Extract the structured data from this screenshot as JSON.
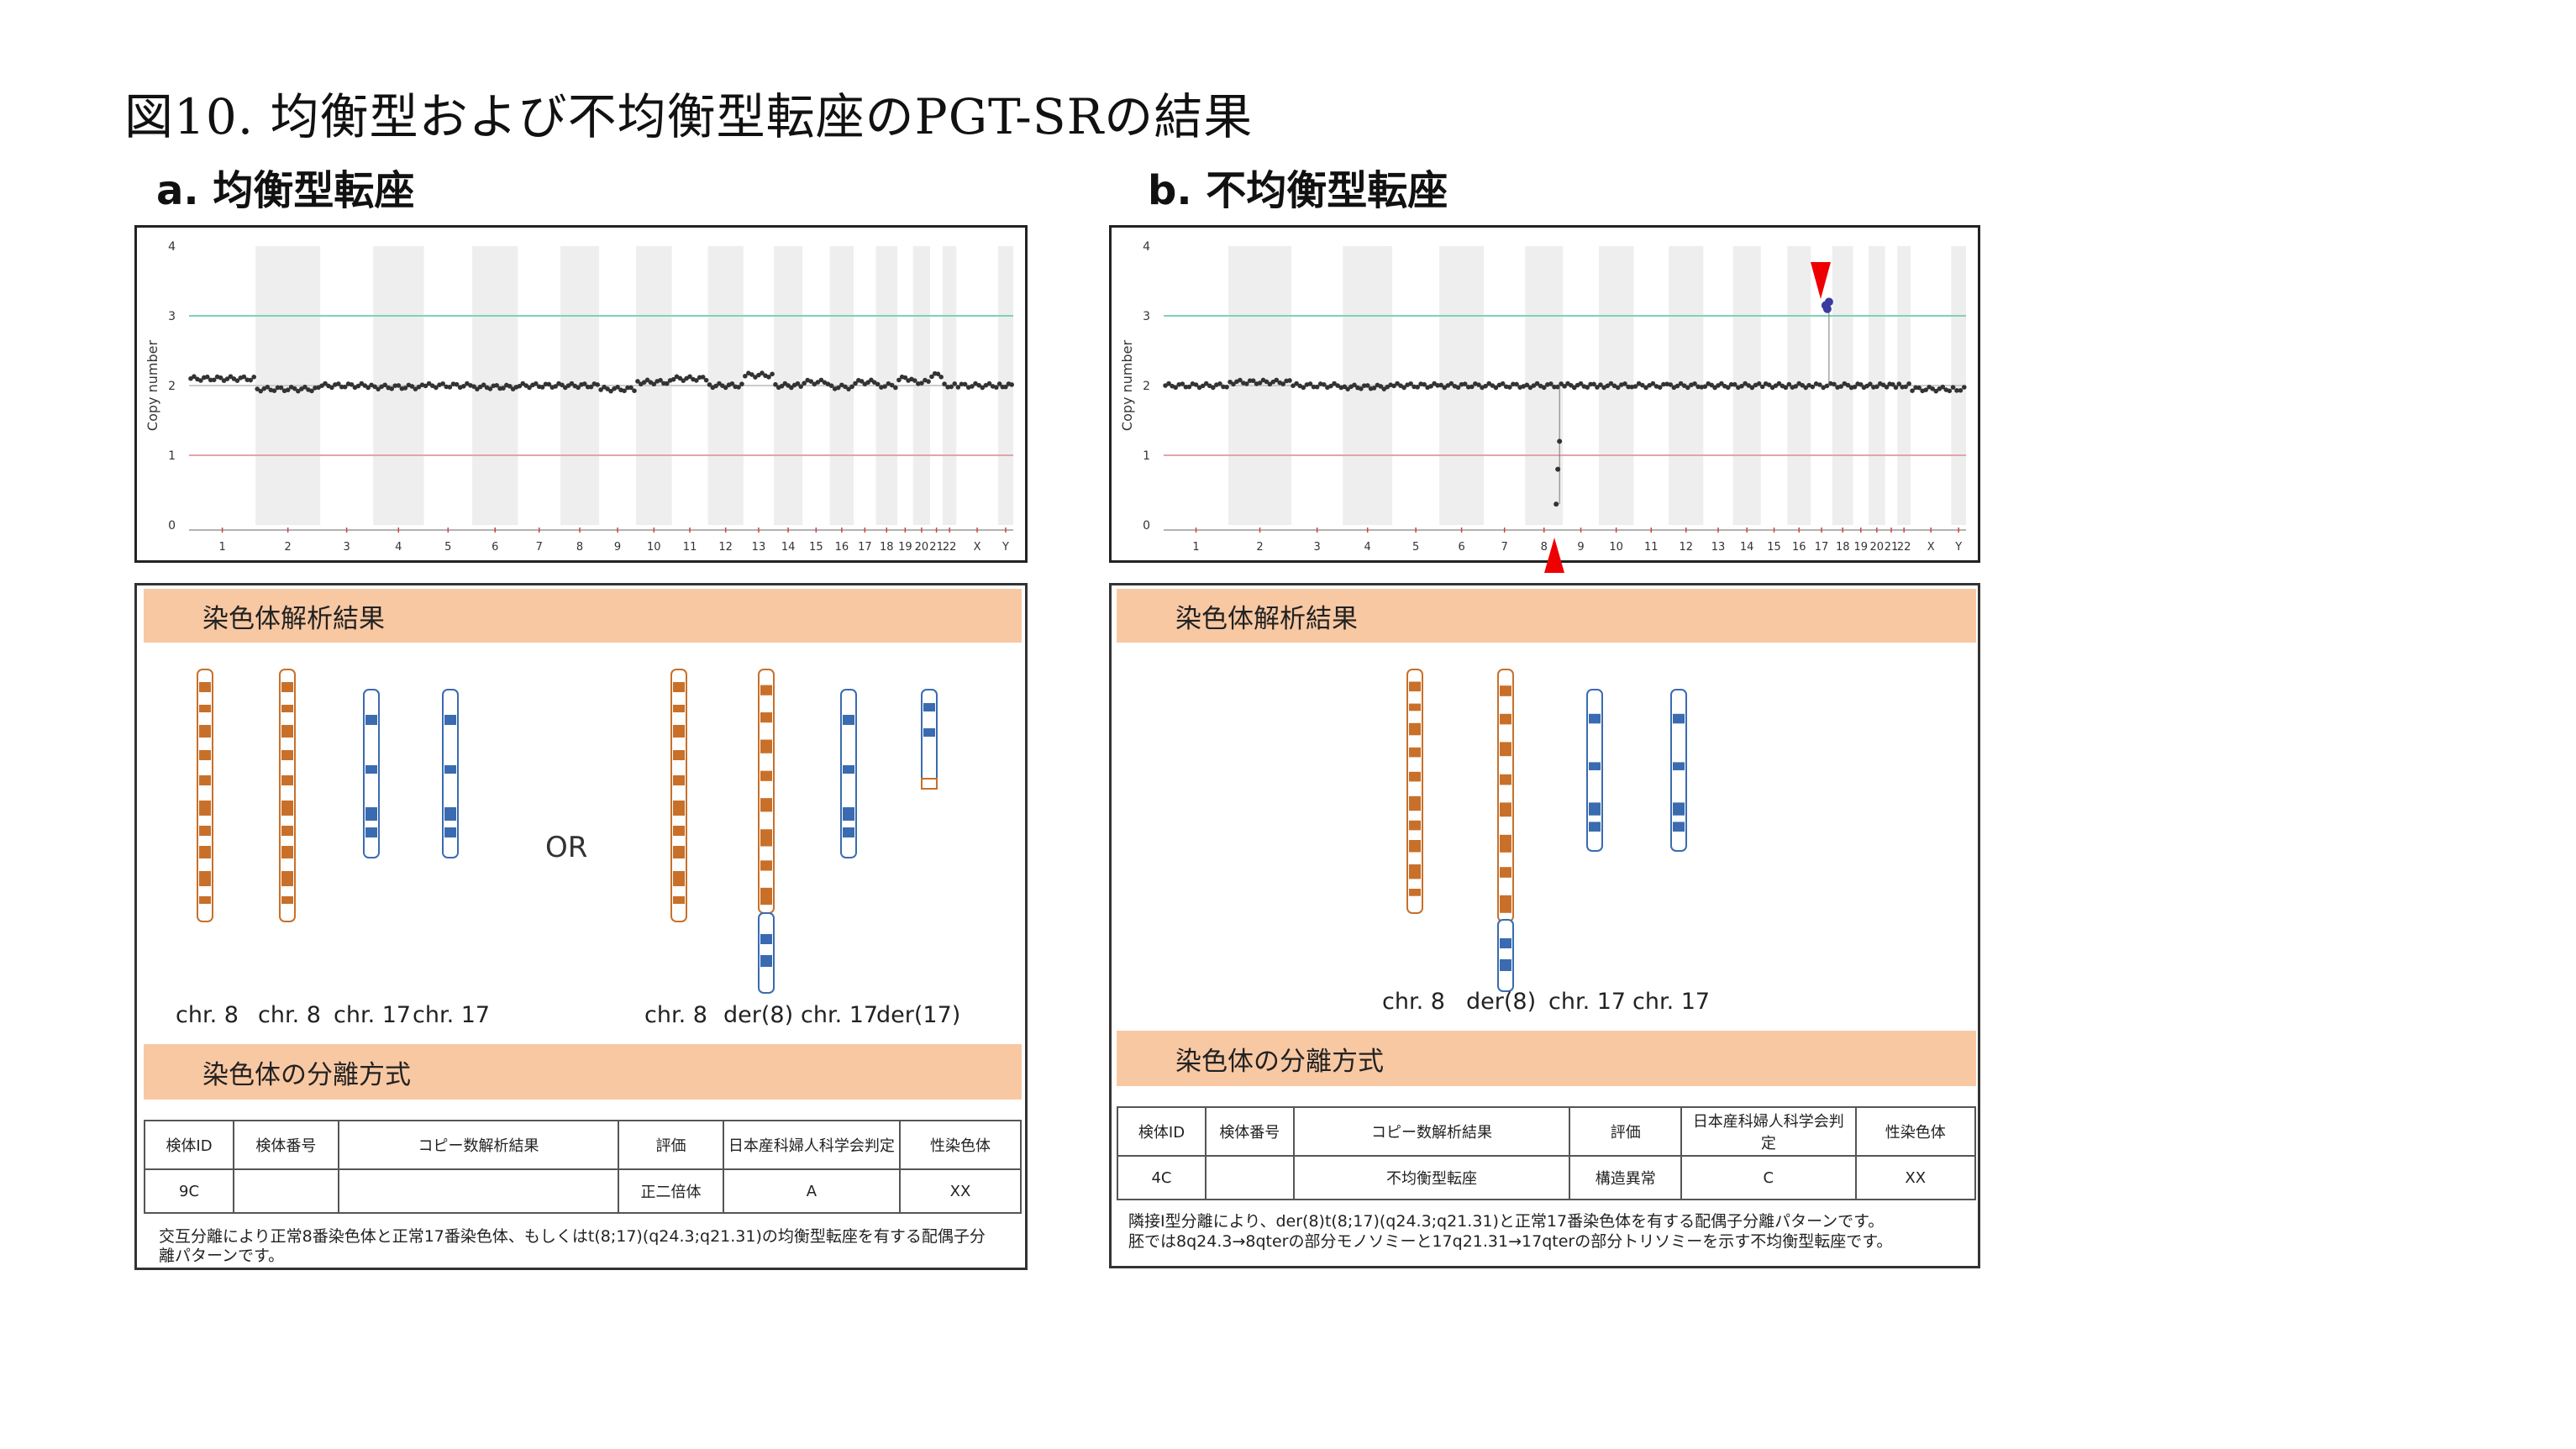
{
  "figure": {
    "title": "図10. 均衡型および不均衡型転座のPGT-SRの結果"
  },
  "panel_a": {
    "label": "a. 均衡型転座",
    "section_karyotype": "染色体解析結果",
    "section_segregation": "染色体の分離方式",
    "or_label": "OR",
    "chromosomes_left": [
      "chr. 8",
      "chr. 8",
      "chr. 17",
      "chr. 17"
    ],
    "chromosomes_right": [
      "chr. 8",
      "der(8)",
      "chr. 17",
      "der(17)"
    ],
    "table": {
      "headers": [
        "検体ID",
        "検体番号",
        "コピー数解析結果",
        "評価",
        "日本産科婦人科学会判定",
        "性染色体"
      ],
      "row": [
        "9C",
        "",
        "",
        "正二倍体",
        "A",
        "XX"
      ],
      "note": "交互分離により正常8番染色体と正常17番染色体、もしくはt(8;17)(q24.3;q21.31)の均衡型転座を有する配偶子分離パターンです。"
    }
  },
  "panel_b": {
    "label": "b. 不均衡型転座",
    "section_karyotype": "染色体解析結果",
    "section_segregation": "染色体の分離方式",
    "chromosomes": [
      "chr. 8",
      "der(8)",
      "chr. 17",
      "chr. 17"
    ],
    "table": {
      "headers": [
        "検体ID",
        "検体番号",
        "コピー数解析結果",
        "評価",
        "日本産科婦人科学会判定",
        "性染色体"
      ],
      "row": [
        "4C",
        "",
        "不均衡型転座",
        "構造異常",
        "C",
        "XX"
      ],
      "note_line1": "隣接Ⅰ型分離により、der(8)t(8;17)(q24.3;q21.31)と正常17番染色体を有する配偶子分離パターンです。",
      "note_line2": "胚では8q24.3→8qterの部分モノソミーと17q21.31→17qterの部分トリソミーを示す不均衡型転座です。"
    }
  },
  "chart_data": [
    {
      "type": "scatter",
      "panel": "a",
      "ylabel": "Copy number",
      "ylim": [
        0,
        4
      ],
      "yticks": [
        0,
        1,
        2,
        3,
        4
      ],
      "reference_lines": [
        {
          "y": 3,
          "color": "#7fd1b9"
        },
        {
          "y": 2,
          "color": "#cccccc"
        },
        {
          "y": 1,
          "color": "#e3a3b0"
        }
      ],
      "x_categories": [
        "1",
        "2",
        "3",
        "4",
        "5",
        "6",
        "7",
        "8",
        "9",
        "10",
        "11",
        "12",
        "13",
        "14",
        "15",
        "16",
        "17",
        "18",
        "19",
        "20",
        "21",
        "22",
        "X",
        "Y"
      ],
      "copy_number_by_chromosome": [
        2.1,
        1.95,
        2.0,
        1.98,
        2.0,
        1.98,
        2.0,
        2.0,
        1.95,
        2.05,
        2.1,
        2.0,
        2.15,
        2.0,
        2.05,
        1.98,
        2.05,
        2.0,
        2.1,
        2.05,
        2.15,
        2.0,
        2.0,
        2.0
      ],
      "point_color": "#333333"
    },
    {
      "type": "scatter",
      "panel": "b",
      "ylabel": "Copy number",
      "ylim": [
        0,
        4
      ],
      "yticks": [
        0,
        1,
        2,
        3,
        4
      ],
      "reference_lines": [
        {
          "y": 3,
          "color": "#7fd1b9"
        },
        {
          "y": 2,
          "color": "#cccccc"
        },
        {
          "y": 1,
          "color": "#e3a3b0"
        }
      ],
      "x_categories": [
        "1",
        "2",
        "3",
        "4",
        "5",
        "6",
        "7",
        "8",
        "9",
        "10",
        "11",
        "12",
        "13",
        "14",
        "15",
        "16",
        "17",
        "18",
        "19",
        "20",
        "21",
        "22",
        "X",
        "Y"
      ],
      "copy_number_by_chromosome": [
        2.0,
        2.05,
        2.0,
        1.98,
        2.0,
        2.0,
        2.0,
        2.0,
        2.0,
        2.0,
        2.0,
        2.0,
        2.0,
        2.0,
        2.0,
        2.0,
        2.0,
        2.0,
        2.0,
        2.0,
        2.0,
        2.0,
        1.95,
        1.95
      ],
      "segments": [
        {
          "chromosome": "8",
          "region": "8q24.3→8qter",
          "copy_number": [
            1.2,
            0.8,
            0.3
          ]
        },
        {
          "chromosome": "17",
          "region": "17q21.31→17qter",
          "copy_number": [
            3.2,
            3.1,
            3.15
          ]
        }
      ],
      "arrowheads": [
        {
          "chromosome": "8",
          "position": "bottom"
        },
        {
          "chromosome": "17",
          "position": "top"
        }
      ],
      "arrow_color": "#ee0000",
      "point_color": "#333333",
      "highlight_color": "#3a3aa0"
    }
  ]
}
